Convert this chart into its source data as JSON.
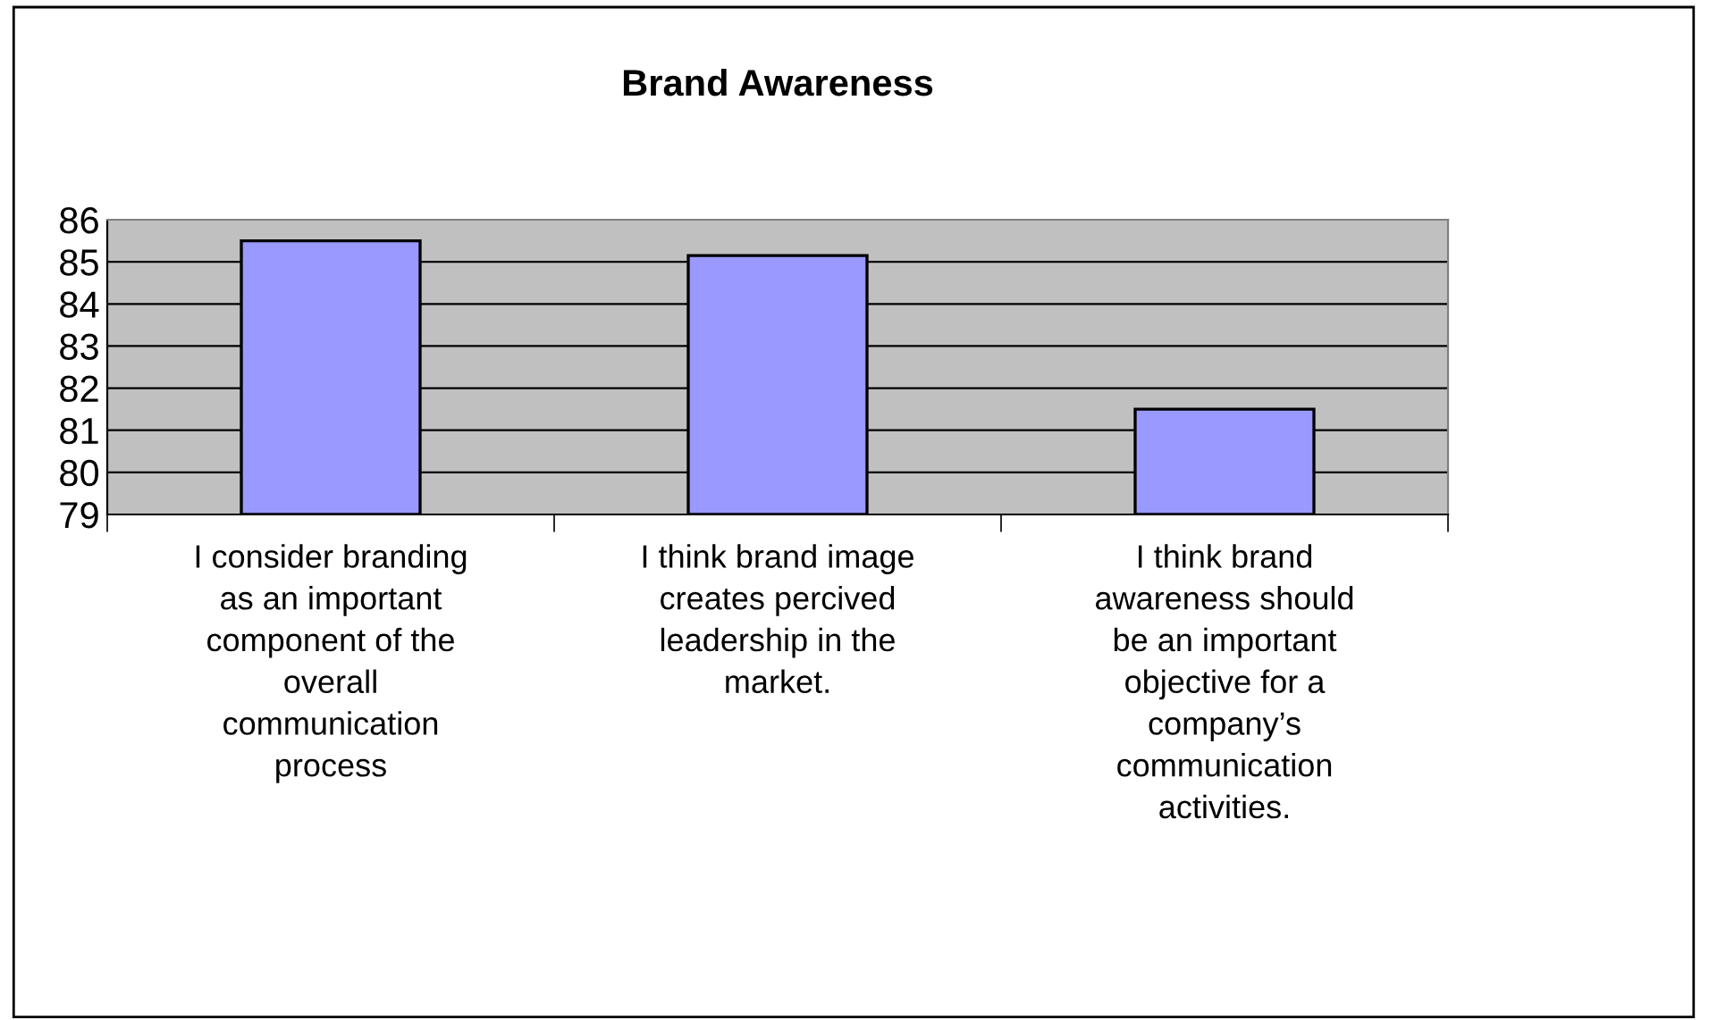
{
  "chart_data": {
    "type": "bar",
    "title": "Brand Awareness",
    "categories": [
      "I consider branding\nas an important\ncomponent of the\noverall\ncommunication\nprocess",
      "I think brand image\ncreates percived\nleadership in the\nmarket.",
      "I think brand\nawareness should\nbe an important\nobjective for a\ncompany’s\ncommunication\nactivities."
    ],
    "values": [
      85.5,
      85.15,
      81.5
    ],
    "color": "#9999ff",
    "ylim": [
      79,
      86
    ],
    "yticks": [
      79,
      80,
      81,
      82,
      83,
      84,
      85,
      86
    ],
    "grid": "y",
    "legend": false
  }
}
